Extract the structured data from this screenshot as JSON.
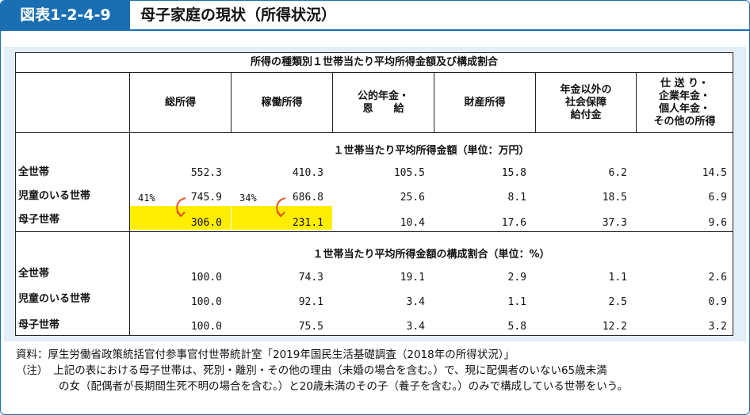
{
  "header": {
    "figure_label": "図表1-2-4-9",
    "title": "母子家庭の現状（所得状況）"
  },
  "table": {
    "caption": "所得の種類別１世帯当たり平均所得金額及び構成割合",
    "columns": [
      {
        "lines": [
          "総所得"
        ]
      },
      {
        "lines": [
          "稼働所得"
        ]
      },
      {
        "lines": [
          "公的年金・",
          "恩　　給"
        ]
      },
      {
        "lines": [
          "財産所得"
        ]
      },
      {
        "lines": [
          "年金以外の",
          "社会保障",
          "給付金"
        ]
      },
      {
        "lines": [
          "仕 送 り・",
          "企業年金・",
          "個人年金・",
          "その他の所得"
        ]
      }
    ],
    "sections": [
      {
        "title": "１世帯当たり平均所得金額（単位：万円）",
        "rows": [
          {
            "label": "全世帯",
            "values": [
              "552.3",
              "410.3",
              "105.5",
              "15.8",
              "6.2",
              "14.5"
            ]
          },
          {
            "label": "児童のいる世帯",
            "values": [
              "745.9",
              "686.8",
              "25.6",
              "8.1",
              "18.5",
              "6.9"
            ]
          },
          {
            "label": "母子世帯",
            "values": [
              "306.0",
              "231.1",
              "10.4",
              "17.6",
              "37.3",
              "9.6"
            ]
          }
        ]
      },
      {
        "title": "１世帯当たり平均所得金額の構成割合（単位：%）",
        "rows": [
          {
            "label": "全世帯",
            "values": [
              "100.0",
              "74.3",
              "19.1",
              "2.9",
              "1.1",
              "2.6"
            ]
          },
          {
            "label": "児童のいる世帯",
            "values": [
              "100.0",
              "92.1",
              "3.4",
              "1.1",
              "2.5",
              "0.9"
            ]
          },
          {
            "label": "母子世帯",
            "values": [
              "100.0",
              "75.5",
              "3.4",
              "5.8",
              "12.2",
              "3.2"
            ]
          }
        ]
      }
    ],
    "annotations": {
      "total_pct": "41%",
      "earned_pct": "34%",
      "highlight_color": "#ffee00",
      "arrow_color": "#e8541e"
    }
  },
  "notes": {
    "source": "資料：厚生労働省政策統括官付参事官付世帯統計室「2019年国民生活基礎調査（2018年の所得状況）」",
    "note_1": "（注）　上記の表における母子世帯は、死別・離別・その他の理由（未婚の場合を含む。）で、現に配偶者のいない65歳未満",
    "note_2": "　　　　の女（配偶者が長期間生死不明の場合を含む。）と20歳未満のその子（養子を含む。）のみで構成している世帯をいう。"
  },
  "colors": {
    "accent": "#1a6fb3",
    "panel_bg": "#e2eef8"
  }
}
